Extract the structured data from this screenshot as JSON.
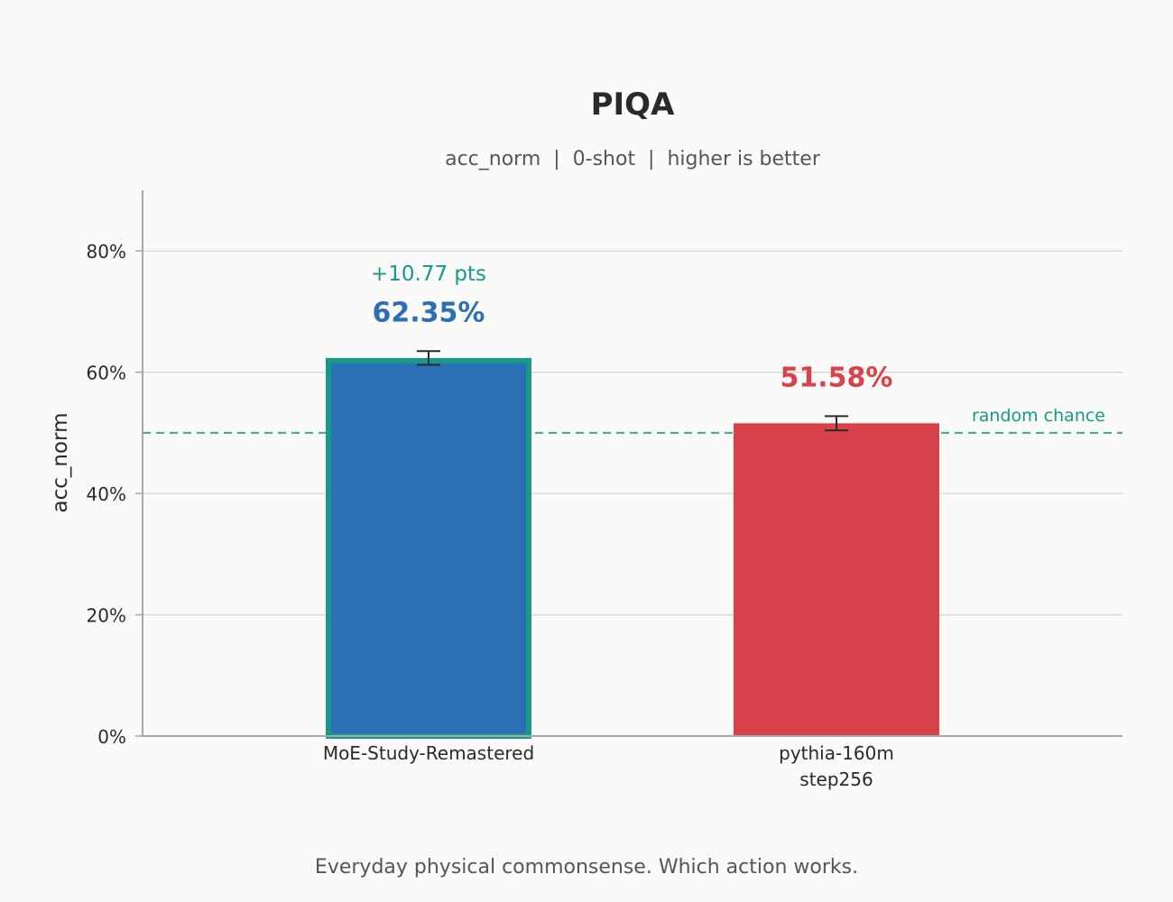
{
  "chart_data": {
    "type": "bar",
    "title": "PIQA",
    "subtitle": "acc_norm  |  0-shot  |  higher is better",
    "ylabel": "acc_norm",
    "ylim": [
      0,
      90
    ],
    "yticks": [
      0,
      20,
      40,
      60,
      80
    ],
    "ytick_labels": [
      "0%",
      "20%",
      "40%",
      "60%",
      "80%"
    ],
    "grid": "horizontal",
    "categories": [
      {
        "line1": "MoE-Study-Remastered",
        "line2": ""
      },
      {
        "line1": "pythia-160m",
        "line2": "step256"
      }
    ],
    "values": [
      62.35,
      51.58
    ],
    "errors": [
      1.13,
      1.17
    ],
    "value_labels": [
      "62.35%",
      "51.58%"
    ],
    "delta_label": "+10.77 pts",
    "reference_line": {
      "value": 50,
      "label": "random chance"
    },
    "footnote": "Everyday physical commonsense. Which action works.",
    "colors": {
      "bar_primary": "#2c6fb4",
      "bar_secondary": "#d8424a",
      "highlight_border": "#17998a",
      "reference": "#17998a",
      "grid": "#d6d6d6",
      "axis": "#a8a8a8",
      "text": "#2a2a2a",
      "subtext": "#555555"
    }
  }
}
